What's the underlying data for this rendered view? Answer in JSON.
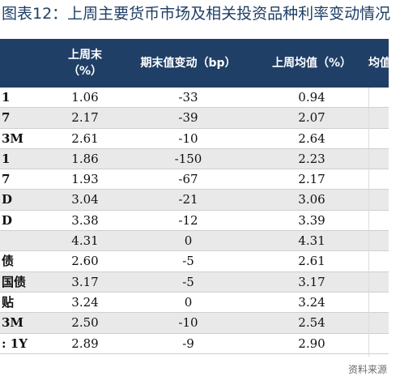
{
  "title": "图表12：上周主要货币市场及相关投资品种利率变动情况",
  "header": {
    "col1_line1": "上周末",
    "col1_line2": "（%）",
    "col2": "期末值变动（bp）",
    "col3": "上周均值（%）",
    "col4": "均值"
  },
  "rows": [
    {
      "label": "1",
      "last": "1.06",
      "change": "-33",
      "avg": "0.94"
    },
    {
      "label": "7",
      "last": "2.17",
      "change": "-39",
      "avg": "2.07"
    },
    {
      "label": "3M",
      "last": "2.61",
      "change": "-10",
      "avg": "2.64"
    },
    {
      "label": "1",
      "last": "1.86",
      "change": "-150",
      "avg": "2.23"
    },
    {
      "label": "7",
      "last": "1.93",
      "change": "-67",
      "avg": "2.17"
    },
    {
      "label": "D",
      "last": "3.04",
      "change": "-21",
      "avg": "3.06"
    },
    {
      "label": "D",
      "last": "3.38",
      "change": "-12",
      "avg": "3.39"
    },
    {
      "label": "",
      "last": "4.31",
      "change": "0",
      "avg": "4.31"
    },
    {
      "label": "债",
      "last": "2.60",
      "change": "-5",
      "avg": "2.61"
    },
    {
      "label": "国债",
      "last": "3.17",
      "change": "-5",
      "avg": "3.17"
    },
    {
      "label": "贴",
      "last": "3.24",
      "change": "0",
      "avg": "3.24"
    },
    {
      "label": "3M",
      "last": "2.50",
      "change": "-10",
      "avg": "2.54"
    },
    {
      "label": ": 1Y",
      "last": "2.89",
      "change": "-9",
      "avg": "2.90"
    }
  ],
  "source": "资料来源"
}
